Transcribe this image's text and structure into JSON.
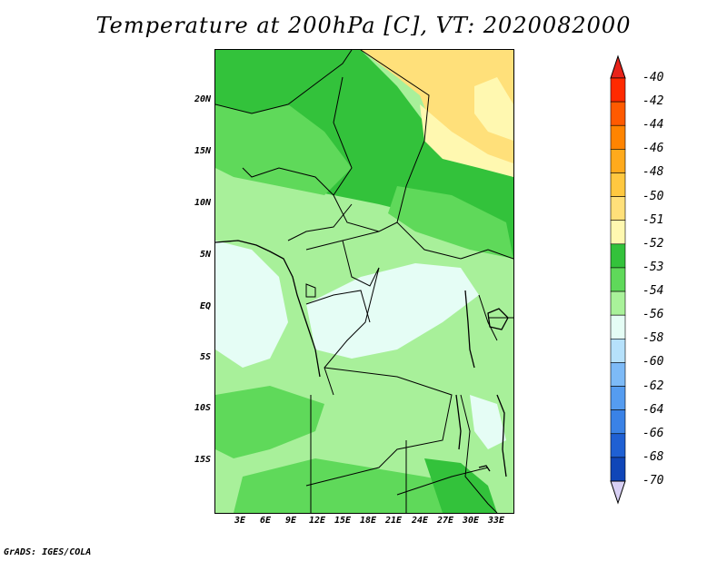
{
  "title": "Temperature at 200hPa [C], VT: 2020082000",
  "footer": "GrADS: IGES/COLA",
  "y_axis_labels": [
    "20N",
    "15N",
    "10N",
    "5N",
    "EQ",
    "5S",
    "10S",
    "15S"
  ],
  "x_axis_labels": [
    "3E",
    "6E",
    "9E",
    "12E",
    "15E",
    "18E",
    "21E",
    "24E",
    "27E",
    "30E",
    "33E"
  ],
  "colorbar": {
    "labels": [
      "-40",
      "-42",
      "-44",
      "-46",
      "-48",
      "-50",
      "-51",
      "-52",
      "-53",
      "-54",
      "-56",
      "-58",
      "-60",
      "-62",
      "-64",
      "-66",
      "-68",
      "-70"
    ],
    "colors": [
      "#ff2a00",
      "#ff5a00",
      "#ff8400",
      "#ffaa1c",
      "#ffc840",
      "#ffe07a",
      "#fff8b0",
      "#33c23b",
      "#5fd95a",
      "#a9f29a",
      "#e5fdf5",
      "#b6e1fb",
      "#7dbaf7",
      "#559cf0",
      "#3a82e6",
      "#1f60d3",
      "#1046b8",
      "#09208a",
      "#0a0a6e"
    ],
    "top_color": "#e8231a",
    "bottom_color": "#d8d0f4"
  }
}
